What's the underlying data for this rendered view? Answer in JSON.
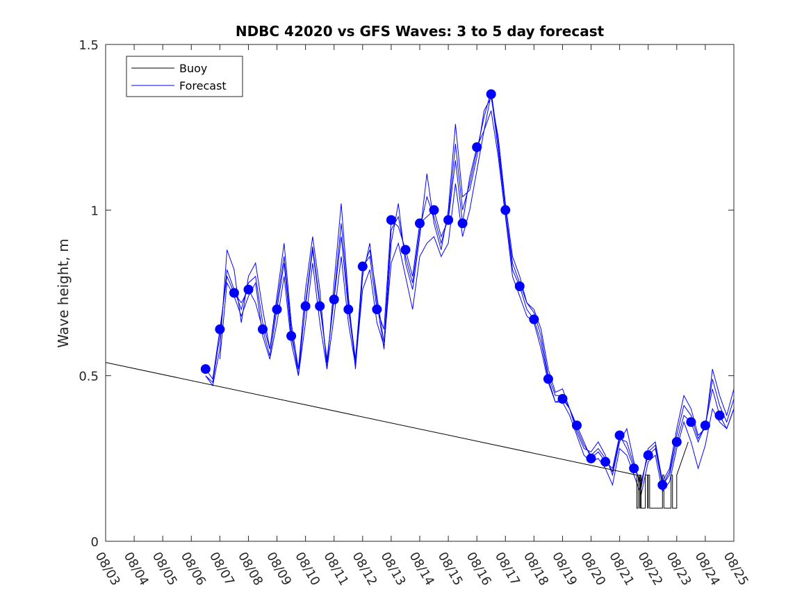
{
  "chart_data": {
    "type": "line",
    "title": "NDBC 42020 vs GFS Waves: 3 to 5 day forecast",
    "ylabel": "Wave height, m",
    "xlabel": "",
    "ylim": [
      0,
      1.5
    ],
    "xlim_days": [
      0,
      22
    ],
    "yticks": [
      0,
      0.5,
      1,
      1.5
    ],
    "ytick_labels": [
      "0",
      "0.5",
      "1",
      "1.5"
    ],
    "xtick_labels": [
      "08/03",
      "08/04",
      "08/05",
      "08/06",
      "08/07",
      "08/08",
      "08/09",
      "08/10",
      "08/11",
      "08/12",
      "08/13",
      "08/14",
      "08/15",
      "08/16",
      "08/17",
      "08/18",
      "08/19",
      "08/20",
      "08/21",
      "08/22",
      "08/23",
      "08/24",
      "08/25"
    ],
    "legend": {
      "position": "top-left",
      "entries": [
        "Buoy",
        "Forecast"
      ]
    },
    "colors": {
      "buoy": "#000000",
      "forecast": "#0000ff",
      "axis": "#262626"
    },
    "buoy": {
      "name": "Buoy",
      "x": [
        0,
        18.6,
        18.6,
        18.65,
        18.65,
        18.7,
        18.7,
        18.72,
        18.72,
        18.75,
        18.75,
        18.9,
        18.9,
        18.98,
        18.98,
        19.0,
        19.0,
        19.05,
        19.05,
        19.5,
        19.5,
        19.55,
        19.55,
        19.8,
        19.8,
        19.85,
        19.85,
        20.0,
        20.0,
        20.4,
        20.4
      ],
      "y": [
        0.54,
        0.2,
        0.1,
        0.1,
        0.2,
        0.2,
        0.1,
        0.1,
        0.2,
        0.2,
        0.1,
        0.1,
        0.2,
        0.2,
        0.1,
        0.1,
        0.2,
        0.2,
        0.1,
        0.1,
        0.2,
        0.2,
        0.1,
        0.1,
        0.2,
        0.2,
        0.1,
        0.1,
        0.2,
        0.3,
        0.3
      ]
    },
    "forecast_dots": {
      "x": [
        3.5,
        4.0,
        4.5,
        5.0,
        5.5,
        6.0,
        6.5,
        7.0,
        7.5,
        8.0,
        8.5,
        9.0,
        9.5,
        10.0,
        10.5,
        11.0,
        11.5,
        12.0,
        12.5,
        13.0,
        13.5,
        14.0,
        14.5,
        15.0,
        15.5,
        16.0,
        16.5,
        17.0,
        17.5,
        18.0,
        18.5,
        19.0,
        19.5,
        20.0,
        20.5,
        21.0,
        21.5
      ],
      "y": [
        0.52,
        0.64,
        0.75,
        0.76,
        0.64,
        0.7,
        0.62,
        0.71,
        0.71,
        0.73,
        0.7,
        0.83,
        0.7,
        0.97,
        0.88,
        0.96,
        1.0,
        0.97,
        0.96,
        1.19,
        1.35,
        1.0,
        0.77,
        0.67,
        0.49,
        0.43,
        0.35,
        0.25,
        0.24,
        0.32,
        0.22,
        0.26,
        0.17,
        0.3,
        0.36,
        0.35,
        0.38
      ]
    },
    "forecast_series": [
      {
        "name": "Forecast",
        "x": [
          3.5,
          3.75,
          4.0,
          4.25,
          4.5,
          4.75,
          5.0,
          5.25,
          5.5,
          5.75,
          6.0,
          6.25,
          6.5,
          6.75,
          7.0,
          7.25,
          7.5,
          7.75,
          8.0,
          8.25,
          8.5,
          8.75,
          9.0,
          9.25,
          9.5,
          9.75,
          10.0,
          10.25,
          10.5,
          10.75,
          11.0,
          11.25,
          11.5,
          11.75,
          12.0,
          12.25,
          12.5,
          12.75,
          13.0,
          13.25,
          13.5,
          13.75,
          14.0,
          14.25,
          14.5,
          14.75,
          15.0,
          15.25,
          15.5,
          15.75,
          16.0,
          16.25,
          16.5,
          16.75,
          17.0,
          17.25,
          17.5,
          17.75,
          18.0,
          18.25,
          18.5,
          18.75,
          19.0,
          19.25,
          19.5,
          19.75,
          20.0,
          20.25,
          20.5,
          20.75,
          21.0,
          21.25,
          21.5,
          21.75,
          22.0
        ],
        "y": [
          0.52,
          0.49,
          0.64,
          0.8,
          0.75,
          0.72,
          0.76,
          0.72,
          0.64,
          0.56,
          0.7,
          0.84,
          0.62,
          0.52,
          0.71,
          0.88,
          0.71,
          0.55,
          0.73,
          0.92,
          0.7,
          0.54,
          0.83,
          0.86,
          0.7,
          0.64,
          0.97,
          0.95,
          0.88,
          0.8,
          0.96,
          0.98,
          1.0,
          0.92,
          0.97,
          1.15,
          0.96,
          1.1,
          1.19,
          1.24,
          1.35,
          1.18,
          1.0,
          0.82,
          0.77,
          0.7,
          0.67,
          0.6,
          0.49,
          0.42,
          0.43,
          0.4,
          0.35,
          0.3,
          0.25,
          0.27,
          0.24,
          0.22,
          0.32,
          0.28,
          0.22,
          0.18,
          0.26,
          0.28,
          0.17,
          0.2,
          0.3,
          0.38,
          0.36,
          0.3,
          0.35,
          0.46,
          0.38,
          0.34,
          0.4
        ]
      },
      {
        "name": "Forecast",
        "x": [
          3.5,
          3.75,
          4.0,
          4.25,
          4.5,
          4.75,
          5.0,
          5.25,
          5.5,
          5.75,
          6.0,
          6.25,
          6.5,
          6.75,
          7.0,
          7.25,
          7.5,
          7.75,
          8.0,
          8.25,
          8.5,
          8.75,
          9.0,
          9.25,
          9.5,
          9.75,
          10.0,
          10.25,
          10.5,
          10.75,
          11.0,
          11.25,
          11.5,
          11.75,
          12.0,
          12.25,
          12.5,
          12.75,
          13.0,
          13.25,
          13.5,
          13.75,
          14.0,
          14.25,
          14.5,
          14.75,
          15.0,
          15.25,
          15.5,
          15.75,
          16.0,
          16.25,
          16.5,
          16.75,
          17.0,
          17.25,
          17.5,
          17.75,
          18.0,
          18.25,
          18.5,
          18.75,
          19.0,
          19.25,
          19.5,
          19.75,
          20.0,
          20.25,
          20.5,
          20.75,
          21.0,
          21.25,
          21.5,
          21.75,
          22.0
        ],
        "y": [
          0.5,
          0.47,
          0.58,
          0.88,
          0.82,
          0.66,
          0.8,
          0.84,
          0.7,
          0.58,
          0.74,
          0.9,
          0.66,
          0.52,
          0.76,
          0.92,
          0.76,
          0.52,
          0.78,
          1.02,
          0.74,
          0.52,
          0.8,
          0.9,
          0.72,
          0.58,
          0.9,
          1.02,
          0.84,
          0.76,
          0.92,
          1.11,
          0.96,
          0.88,
          1.0,
          1.26,
          1.04,
          1.06,
          1.16,
          1.3,
          1.34,
          1.22,
          1.02,
          0.86,
          0.8,
          0.72,
          0.7,
          0.64,
          0.52,
          0.45,
          0.46,
          0.4,
          0.33,
          0.28,
          0.27,
          0.3,
          0.26,
          0.2,
          0.3,
          0.34,
          0.24,
          0.16,
          0.28,
          0.3,
          0.18,
          0.22,
          0.34,
          0.44,
          0.4,
          0.32,
          0.34,
          0.52,
          0.44,
          0.38,
          0.46
        ]
      },
      {
        "name": "Forecast",
        "x": [
          3.5,
          3.75,
          4.0,
          4.25,
          4.5,
          4.75,
          5.0,
          5.25,
          5.5,
          5.75,
          6.0,
          6.25,
          6.5,
          6.75,
          7.0,
          7.25,
          7.5,
          7.75,
          8.0,
          8.25,
          8.5,
          8.75,
          9.0,
          9.25,
          9.5,
          9.75,
          10.0,
          10.25,
          10.5,
          10.75,
          11.0,
          11.25,
          11.5,
          11.75,
          12.0,
          12.25,
          12.5,
          12.75,
          13.0,
          13.25,
          13.5,
          13.75,
          14.0,
          14.25,
          14.5,
          14.75,
          15.0,
          15.25,
          15.5,
          15.75,
          16.0,
          16.25,
          16.5,
          16.75,
          17.0,
          17.25,
          17.5,
          17.75,
          18.0,
          18.25,
          18.5,
          18.75,
          19.0,
          19.25,
          19.5,
          19.75,
          20.0,
          20.25,
          20.5,
          20.75,
          21.0,
          21.25,
          21.5,
          21.75,
          22.0
        ],
        "y": [
          0.5,
          0.48,
          0.62,
          0.82,
          0.76,
          0.7,
          0.78,
          0.8,
          0.66,
          0.58,
          0.72,
          0.86,
          0.64,
          0.5,
          0.72,
          0.89,
          0.72,
          0.54,
          0.74,
          0.96,
          0.72,
          0.55,
          0.82,
          0.88,
          0.74,
          0.6,
          0.94,
          0.98,
          0.86,
          0.78,
          0.94,
          1.04,
          0.98,
          0.9,
          0.98,
          1.2,
          1.0,
          1.08,
          1.18,
          1.28,
          1.36,
          1.2,
          1.0,
          0.84,
          0.78,
          0.72,
          0.69,
          0.62,
          0.5,
          0.44,
          0.44,
          0.4,
          0.34,
          0.29,
          0.26,
          0.28,
          0.25,
          0.21,
          0.31,
          0.3,
          0.23,
          0.17,
          0.27,
          0.29,
          0.17,
          0.21,
          0.32,
          0.41,
          0.38,
          0.31,
          0.35,
          0.49,
          0.41,
          0.36,
          0.43
        ]
      },
      {
        "name": "Forecast",
        "x": [
          4.0,
          4.25,
          4.5,
          4.75,
          5.0,
          5.25,
          5.5,
          5.75,
          6.0,
          6.25,
          6.5,
          6.75,
          7.0,
          7.25,
          7.5,
          7.75,
          8.0,
          8.25,
          8.5,
          8.75,
          9.0,
          9.25,
          9.5,
          9.75,
          10.0,
          10.25,
          10.5,
          10.75,
          11.0,
          11.25,
          11.5,
          11.75,
          12.0,
          12.25,
          12.5,
          12.75,
          13.0,
          13.25,
          13.5,
          13.75,
          14.0,
          14.25,
          14.5,
          14.75,
          15.0,
          15.25,
          15.5,
          15.75,
          16.0,
          16.25,
          16.5,
          16.75,
          17.0,
          17.25,
          17.5,
          17.75,
          18.0,
          18.25,
          18.5,
          18.75,
          19.0,
          19.25,
          19.5,
          19.75,
          20.0,
          20.25,
          20.5,
          20.75,
          21.0,
          21.25,
          21.5,
          21.75,
          22.0
        ],
        "y": [
          0.55,
          0.78,
          0.74,
          0.68,
          0.74,
          0.78,
          0.62,
          0.55,
          0.66,
          0.8,
          0.6,
          0.5,
          0.66,
          0.84,
          0.66,
          0.52,
          0.68,
          0.86,
          0.66,
          0.53,
          0.76,
          0.82,
          0.66,
          0.59,
          0.84,
          0.9,
          0.8,
          0.7,
          0.86,
          0.9,
          0.92,
          0.86,
          0.9,
          1.08,
          0.92,
          1.0,
          1.12,
          1.24,
          1.3,
          1.16,
          0.98,
          0.8,
          0.74,
          0.68,
          0.66,
          0.58,
          0.48,
          0.42,
          0.42,
          0.38,
          0.32,
          0.26,
          0.24,
          0.25,
          0.22,
          0.17,
          0.28,
          0.26,
          0.2,
          0.14,
          0.24,
          0.26,
          0.15,
          0.18,
          0.28,
          0.36,
          0.3,
          0.22,
          0.29,
          0.4,
          0.36,
          0.34,
          0.4
        ]
      }
    ]
  }
}
